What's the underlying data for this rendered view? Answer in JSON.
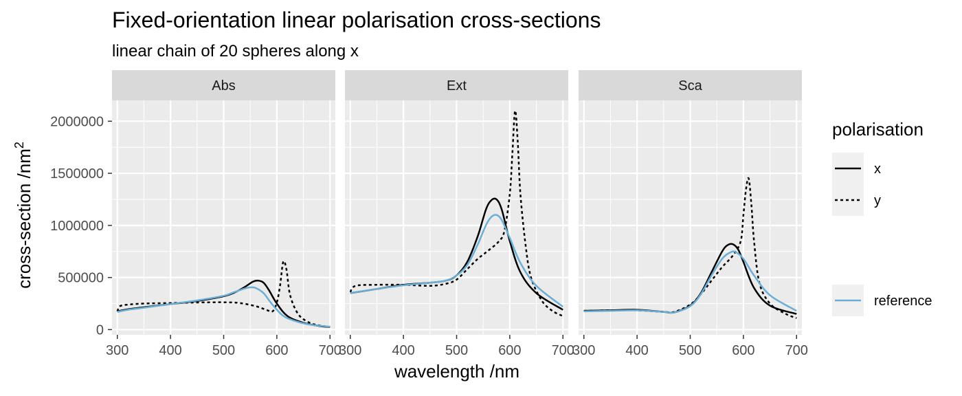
{
  "chart_data": {
    "type": "line",
    "title": "Fixed-orientation linear polarisation cross-sections",
    "subtitle": "linear chain of 20 spheres along x",
    "xlabel": "wavelength /nm",
    "ylabel": "cross-section /nm",
    "ylabel_superscript": "2",
    "xlim": [
      290,
      710
    ],
    "ylim": [
      -50000,
      2200000
    ],
    "x_ticks": [
      300,
      400,
      500,
      600,
      700
    ],
    "y_ticks": [
      0,
      500000,
      1000000,
      1500000,
      2000000
    ],
    "y_tick_labels": [
      "0",
      "500000",
      "1000000",
      "1500000",
      "2000000"
    ],
    "grid": true,
    "legend": {
      "title": "polarisation",
      "position": "right",
      "entries": [
        {
          "label": "x",
          "style": "solid",
          "color": "#000000"
        },
        {
          "label": "y",
          "style": "dotted",
          "color": "#000000"
        },
        {
          "label": "reference",
          "style": "solid",
          "color": "#6aaed6"
        }
      ]
    },
    "panels": [
      {
        "label": "Abs",
        "series": [
          {
            "name": "x",
            "style": "solid",
            "color": "#000000",
            "x": [
              300,
              320,
              350,
              400,
              450,
              500,
              520,
              540,
              555,
              565,
              575,
              585,
              600,
              620,
              650,
              680,
              700
            ],
            "y": [
              175000,
              195000,
              215000,
              245000,
              275000,
              320000,
              355000,
              410000,
              460000,
              470000,
              450000,
              380000,
              250000,
              130000,
              65000,
              35000,
              25000
            ]
          },
          {
            "name": "y",
            "style": "dotted",
            "color": "#000000",
            "x": [
              300,
              305,
              320,
              350,
              400,
              450,
              500,
              530,
              560,
              580,
              592,
              600,
              606,
              612,
              618,
              625,
              640,
              660,
              680,
              700
            ],
            "y": [
              175000,
              225000,
              240000,
              250000,
              255000,
              260000,
              262000,
              255000,
              225000,
              190000,
              175000,
              260000,
              420000,
              650000,
              580000,
              330000,
              150000,
              70000,
              40000,
              25000
            ]
          },
          {
            "name": "reference",
            "style": "solid",
            "color": "#6aaed6",
            "x": [
              300,
              320,
              350,
              400,
              450,
              500,
              520,
              540,
              550,
              560,
              575,
              590,
              610,
              630,
              660,
              700
            ],
            "y": [
              170000,
              190000,
              210000,
              245000,
              280000,
              325000,
              360000,
              395000,
              405000,
              400000,
              350000,
              250000,
              140000,
              90000,
              50000,
              28000
            ]
          }
        ]
      },
      {
        "label": "Ext",
        "series": [
          {
            "name": "x",
            "style": "solid",
            "color": "#000000",
            "x": [
              300,
              350,
              400,
              450,
              480,
              500,
              520,
              540,
              555,
              565,
              575,
              585,
              600,
              620,
              650,
              700
            ],
            "y": [
              350000,
              390000,
              430000,
              450000,
              470000,
              520000,
              650000,
              900000,
              1150000,
              1240000,
              1250000,
              1150000,
              850000,
              550000,
              350000,
              190000
            ]
          },
          {
            "name": "y",
            "style": "dotted",
            "color": "#000000",
            "x": [
              300,
              310,
              350,
              400,
              450,
              480,
              500,
              520,
              540,
              560,
              580,
              590,
              600,
              605,
              610,
              615,
              620,
              630,
              640,
              660,
              680,
              700
            ],
            "y": [
              360000,
              420000,
              430000,
              430000,
              420000,
              440000,
              480000,
              580000,
              680000,
              760000,
              850000,
              950000,
              1300000,
              1700000,
              2100000,
              1800000,
              1300000,
              800000,
              500000,
              280000,
              180000,
              130000
            ]
          },
          {
            "name": "reference",
            "style": "solid",
            "color": "#6aaed6",
            "x": [
              300,
              350,
              400,
              450,
              480,
              500,
              520,
              540,
              555,
              565,
              575,
              585,
              600,
              620,
              650,
              700
            ],
            "y": [
              350000,
              390000,
              425000,
              450000,
              470000,
              520000,
              620000,
              820000,
              1000000,
              1080000,
              1100000,
              1050000,
              880000,
              640000,
              420000,
              220000
            ]
          }
        ]
      },
      {
        "label": "Sca",
        "series": [
          {
            "name": "x",
            "style": "solid",
            "color": "#000000",
            "x": [
              300,
              350,
              400,
              450,
              470,
              500,
              520,
              540,
              560,
              570,
              580,
              590,
              600,
              620,
              650,
              700
            ],
            "y": [
              180000,
              185000,
              190000,
              170000,
              165000,
              230000,
              350000,
              550000,
              750000,
              810000,
              820000,
              770000,
              650000,
              400000,
              230000,
              150000
            ]
          },
          {
            "name": "y",
            "style": "dotted",
            "color": "#000000",
            "x": [
              300,
              350,
              400,
              450,
              470,
              500,
              520,
              540,
              560,
              580,
              595,
              600,
              605,
              610,
              615,
              620,
              630,
              650,
              680,
              700
            ],
            "y": [
              180000,
              185000,
              185000,
              170000,
              170000,
              240000,
              340000,
              470000,
              600000,
              710000,
              850000,
              1100000,
              1350000,
              1450000,
              1200000,
              850000,
              450000,
              250000,
              150000,
              110000
            ]
          },
          {
            "name": "reference",
            "style": "solid",
            "color": "#6aaed6",
            "x": [
              300,
              350,
              400,
              450,
              470,
              500,
              520,
              540,
              560,
              575,
              585,
              600,
              620,
              650,
              700
            ],
            "y": [
              175000,
              180000,
              185000,
              170000,
              165000,
              225000,
              340000,
              520000,
              680000,
              740000,
              745000,
              680000,
              520000,
              330000,
              180000
            ]
          }
        ]
      }
    ]
  }
}
